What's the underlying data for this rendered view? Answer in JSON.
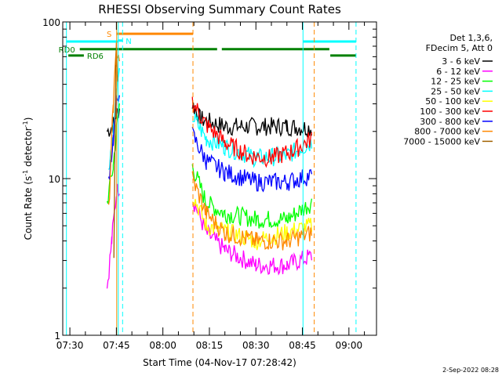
{
  "chart_data": {
    "type": "line",
    "title": "RHESSI Observing Summary Count Rates",
    "xlabel": "Start Time (04-Nov-17 07:28:42)",
    "ylabel_main": "Count Rate (s",
    "ylabel_sup1": "-1",
    "ylabel_mid": " detector",
    "ylabel_sup2": "-1",
    "ylabel_end": ")",
    "y_scale": "log",
    "ylim": [
      1,
      100
    ],
    "y_ticks": [
      "1",
      "10",
      "100"
    ],
    "x_ticks": [
      "07:30",
      "07:45",
      "08:00",
      "08:15",
      "08:30",
      "08:45",
      "09:00"
    ],
    "xlim_minutes": [
      -2.3,
      98.9
    ],
    "x_tick_minutes": [
      0,
      15,
      30,
      45,
      60,
      75,
      90
    ],
    "grid": false,
    "legend_header": [
      "Det 1,3,6,",
      "FDecim 5, Att 0"
    ],
    "legend_placement": "right",
    "series": [
      {
        "name": "3 - 6 keV",
        "color": "#000000",
        "segments": [
          [
            [
              12.0,
              20
            ],
            [
              14.0,
              22
            ],
            [
              15.0,
              26
            ],
            [
              16.0,
              28
            ]
          ],
          [
            [
              39.5,
              30
            ],
            [
              42,
              24
            ],
            [
              50,
              21.5
            ],
            [
              60,
              21.5
            ],
            [
              70,
              21.5
            ],
            [
              78,
              21
            ]
          ]
        ]
      },
      {
        "name": "6 - 12 keV",
        "color": "#ff00ff",
        "segments": [
          [
            [
              12.0,
              2
            ],
            [
              13.5,
              4
            ],
            [
              15.0,
              8
            ],
            [
              16.0,
              9
            ]
          ],
          [
            [
              39.5,
              7.5
            ],
            [
              44,
              4.5
            ],
            [
              50,
              3.5
            ],
            [
              60,
              2.8
            ],
            [
              70,
              2.8
            ],
            [
              78,
              3.2
            ]
          ]
        ]
      },
      {
        "name": "12 - 25 keV",
        "color": "#00ff00",
        "segments": [
          [
            [
              12.0,
              7
            ],
            [
              14.0,
              12
            ],
            [
              15.0,
              20
            ],
            [
              16.0,
              30
            ]
          ],
          [
            [
              39.5,
              12
            ],
            [
              44,
              7
            ],
            [
              50,
              6
            ],
            [
              60,
              5.5
            ],
            [
              70,
              5.5
            ],
            [
              78,
              7
            ]
          ]
        ]
      },
      {
        "name": "25 - 50 keV",
        "color": "#00ffff",
        "segments": [
          [
            [
              12.5,
              12
            ],
            [
              14.0,
              20
            ],
            [
              15.0,
              35
            ],
            [
              16.0,
              45
            ]
          ],
          [
            [
              39.5,
              25
            ],
            [
              44,
              18
            ],
            [
              50,
              16
            ],
            [
              60,
              13.5
            ],
            [
              70,
              14
            ],
            [
              78,
              17
            ]
          ]
        ]
      },
      {
        "name": "50 - 100 keV",
        "color": "#ffff00",
        "segments": [
          [
            [
              39.5,
              8
            ],
            [
              44,
              5
            ],
            [
              60,
              4
            ],
            [
              78,
              5
            ]
          ]
        ]
      },
      {
        "name": "100 - 300 keV",
        "color": "#ff0000",
        "segments": [
          [
            [
              39.5,
              31
            ],
            [
              44,
              22
            ],
            [
              50,
              17
            ],
            [
              58,
              14
            ],
            [
              65,
              13.5
            ],
            [
              72,
              15
            ],
            [
              78,
              18
            ]
          ]
        ]
      },
      {
        "name": "300 - 800 keV",
        "color": "#0000ff",
        "segments": [
          [
            [
              12.5,
              10
            ],
            [
              14.0,
              18
            ],
            [
              15.0,
              30
            ],
            [
              16.0,
              38
            ]
          ],
          [
            [
              39.5,
              19
            ],
            [
              44,
              13
            ],
            [
              50,
              11
            ],
            [
              60,
              9.5
            ],
            [
              70,
              9.5
            ],
            [
              78,
              10.5
            ]
          ]
        ]
      },
      {
        "name": "800 - 7000 keV",
        "color": "#ff8800",
        "segments": [
          [
            [
              12.5,
              6
            ],
            [
              14.0,
              30
            ],
            [
              15.0,
              65
            ],
            [
              16.0,
              60
            ]
          ],
          [
            [
              39.5,
              10
            ],
            [
              44,
              6
            ],
            [
              50,
              4.5
            ],
            [
              60,
              4.0
            ],
            [
              70,
              4.0
            ],
            [
              78,
              4.5
            ]
          ]
        ]
      },
      {
        "name": "7000 - 15000 keV",
        "color": "#a06000",
        "segments": [
          [
            [
              14.2,
              3
            ],
            [
              14.8,
              50
            ],
            [
              15.0,
              70
            ],
            [
              15.5,
              40
            ]
          ]
        ]
      }
    ],
    "flag_bars": [
      {
        "label": "",
        "color": "#00ffff",
        "level": 75,
        "segments": [
          [
            -1,
            15.6
          ],
          [
            75.2,
            92.3
          ]
        ]
      },
      {
        "label": "S",
        "color": "#ff8800",
        "level": 84,
        "segments": [
          [
            15.0,
            39.7
          ]
        ]
      },
      {
        "label": "N",
        "color": "#00ffff",
        "level": 76,
        "segments": [
          [
            15.6,
            17.0
          ]
        ]
      },
      {
        "label": "RD0",
        "color": "#008000",
        "level": 67,
        "segments": [
          [
            3.2,
            39.7
          ],
          [
            39.7,
            47.5
          ],
          [
            49.0,
            83.7
          ]
        ]
      },
      {
        "label": "RD6",
        "color": "#008000",
        "level": 61,
        "segments": [
          [
            -0.5,
            4.5
          ],
          [
            84.0,
            92.3
          ]
        ]
      }
    ],
    "vlines": [
      {
        "x": -1.1,
        "color": "#00ffff",
        "style": "solid"
      },
      {
        "x": 15.1,
        "color": "#ff8800",
        "style": "solid"
      },
      {
        "x": 15.6,
        "color": "#00ffff",
        "style": "solid"
      },
      {
        "x": 17.0,
        "color": "#00ffff",
        "style": "dashed"
      },
      {
        "x": 39.7,
        "color": "#ff8800",
        "style": "dashed"
      },
      {
        "x": 75.2,
        "color": "#00ffff",
        "style": "solid"
      },
      {
        "x": 78.8,
        "color": "#ff8800",
        "style": "dashed"
      },
      {
        "x": 92.3,
        "color": "#00ffff",
        "style": "dashed"
      }
    ]
  },
  "footer_date": "2-Sep-2022 08:28"
}
